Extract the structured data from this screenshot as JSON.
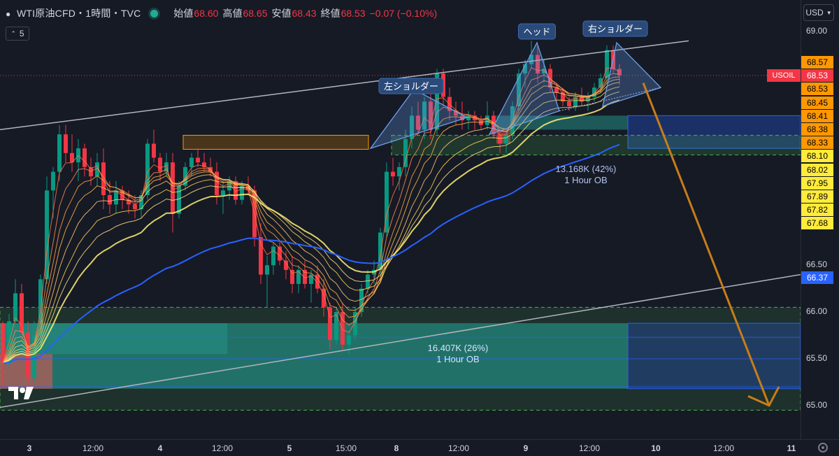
{
  "header": {
    "symbol": "WTI原油CFD・1時間・TVC",
    "open_label": "始値",
    "open": "68.60",
    "high_label": "高値",
    "high": "68.65",
    "low_label": "安値",
    "low": "68.43",
    "close_label": "終値",
    "close": "68.53",
    "change": "−0.07 (−0.10%)"
  },
  "indicator_count": "5",
  "currency": "USD",
  "colors": {
    "up": "#089981",
    "down": "#f23645",
    "background": "#161a25",
    "blue": "#2962ff",
    "orange": "#ff9800"
  },
  "chart_data": {
    "type": "candlestick",
    "ylim": [
      64.95,
      69.05
    ],
    "price_ticks": [
      "69.00",
      "66.50",
      "66.00",
      "65.50",
      "65.00"
    ],
    "time_ticks": [
      "3",
      "12:00",
      "4",
      "12:00",
      "5",
      "15:00",
      "8",
      "12:00",
      "9",
      "12:00",
      "10",
      "12:00",
      "11"
    ],
    "candles": [
      [
        65.88,
        65.9,
        65.2,
        65.45
      ],
      [
        65.45,
        65.98,
        65.4,
        65.9
      ],
      [
        65.9,
        66.35,
        65.85,
        66.2
      ],
      [
        66.2,
        66.3,
        65.7,
        65.78
      ],
      [
        65.78,
        65.9,
        65.2,
        65.3
      ],
      [
        65.3,
        65.9,
        65.25,
        65.75
      ],
      [
        65.75,
        66.4,
        65.6,
        66.35
      ],
      [
        66.35,
        67.45,
        66.3,
        67.3
      ],
      [
        67.3,
        67.55,
        67.0,
        67.5
      ],
      [
        67.5,
        68.0,
        67.4,
        67.9
      ],
      [
        67.9,
        68.0,
        67.6,
        67.7
      ],
      [
        67.7,
        67.9,
        67.5,
        67.6
      ],
      [
        67.6,
        67.85,
        67.4,
        67.75
      ],
      [
        67.75,
        67.8,
        67.45,
        67.55
      ],
      [
        67.55,
        67.65,
        67.35,
        67.45
      ],
      [
        67.45,
        67.7,
        67.35,
        67.6
      ],
      [
        67.6,
        67.75,
        67.1,
        67.25
      ],
      [
        67.25,
        67.4,
        67.05,
        67.15
      ],
      [
        67.15,
        67.4,
        67.05,
        67.3
      ],
      [
        67.3,
        67.35,
        67.1,
        67.2
      ],
      [
        67.2,
        67.3,
        67.05,
        67.15
      ],
      [
        67.15,
        67.25,
        67.0,
        67.1
      ],
      [
        67.1,
        67.3,
        67.0,
        67.25
      ],
      [
        67.25,
        67.85,
        67.2,
        67.8
      ],
      [
        67.8,
        67.95,
        67.6,
        67.65
      ],
      [
        67.65,
        67.7,
        67.4,
        67.5
      ],
      [
        67.5,
        67.7,
        67.45,
        67.6
      ],
      [
        67.6,
        67.7,
        66.85,
        67.05
      ],
      [
        67.05,
        67.4,
        67.0,
        67.35
      ],
      [
        67.35,
        67.6,
        67.3,
        67.55
      ],
      [
        67.55,
        67.7,
        67.45,
        67.65
      ],
      [
        67.65,
        67.75,
        67.55,
        67.6
      ],
      [
        67.6,
        67.7,
        67.5,
        67.55
      ],
      [
        67.55,
        67.65,
        67.45,
        67.5
      ],
      [
        67.5,
        67.6,
        67.15,
        67.25
      ],
      [
        67.25,
        67.4,
        67.05,
        67.3
      ],
      [
        67.3,
        67.45,
        67.2,
        67.4
      ],
      [
        67.4,
        67.45,
        67.15,
        67.2
      ],
      [
        67.2,
        67.4,
        67.15,
        67.35
      ],
      [
        67.35,
        67.45,
        67.25,
        67.3
      ],
      [
        67.3,
        67.35,
        66.7,
        66.8
      ],
      [
        66.8,
        66.95,
        66.3,
        66.4
      ],
      [
        66.4,
        66.6,
        66.05,
        66.5
      ],
      [
        66.5,
        66.75,
        66.4,
        66.7
      ],
      [
        66.7,
        66.75,
        66.5,
        66.55
      ],
      [
        66.55,
        66.65,
        66.35,
        66.45
      ],
      [
        66.45,
        66.6,
        66.2,
        66.3
      ],
      [
        66.3,
        66.5,
        66.2,
        66.45
      ],
      [
        66.45,
        66.55,
        66.25,
        66.3
      ],
      [
        66.3,
        66.45,
        66.1,
        66.4
      ],
      [
        66.4,
        66.5,
        66.2,
        66.25
      ],
      [
        66.25,
        66.35,
        65.95,
        66.05
      ],
      [
        66.05,
        66.1,
        65.6,
        65.7
      ],
      [
        65.7,
        66.05,
        65.65,
        66.0
      ],
      [
        66.0,
        66.1,
        65.6,
        65.65
      ],
      [
        65.65,
        65.8,
        65.55,
        65.75
      ],
      [
        65.75,
        66.05,
        65.7,
        66.0
      ],
      [
        66.0,
        66.3,
        65.95,
        66.25
      ],
      [
        66.25,
        66.45,
        66.2,
        66.4
      ],
      [
        66.4,
        66.55,
        66.3,
        66.45
      ],
      [
        66.45,
        66.9,
        66.4,
        66.85
      ],
      [
        66.85,
        67.6,
        66.8,
        67.5
      ],
      [
        67.5,
        67.65,
        67.35,
        67.45
      ],
      [
        67.45,
        67.6,
        67.3,
        67.55
      ],
      [
        67.55,
        67.95,
        67.45,
        67.85
      ],
      [
        67.85,
        68.2,
        67.75,
        68.1
      ],
      [
        68.1,
        68.25,
        67.9,
        67.95
      ],
      [
        67.95,
        68.3,
        67.85,
        68.25
      ],
      [
        68.25,
        68.35,
        67.85,
        67.95
      ],
      [
        67.95,
        68.6,
        67.9,
        68.55
      ],
      [
        68.55,
        68.6,
        68.2,
        68.3
      ],
      [
        68.3,
        68.4,
        68.05,
        68.15
      ],
      [
        68.15,
        68.25,
        68.0,
        68.1
      ],
      [
        68.1,
        68.25,
        67.95,
        68.05
      ],
      [
        68.05,
        68.15,
        67.95,
        68.1
      ],
      [
        68.1,
        68.15,
        67.95,
        68.05
      ],
      [
        68.05,
        68.1,
        67.95,
        68.0
      ],
      [
        68.0,
        68.25,
        67.95,
        68.1
      ],
      [
        68.1,
        68.15,
        67.85,
        67.9
      ],
      [
        67.9,
        67.95,
        67.7,
        67.8
      ],
      [
        67.8,
        67.95,
        67.7,
        67.9
      ],
      [
        67.9,
        68.25,
        67.85,
        68.2
      ],
      [
        68.2,
        68.6,
        68.15,
        68.55
      ],
      [
        68.55,
        68.7,
        68.4,
        68.65
      ],
      [
        68.65,
        68.9,
        68.6,
        68.75
      ],
      [
        68.75,
        68.85,
        68.45,
        68.55
      ],
      [
        68.55,
        68.7,
        68.45,
        68.6
      ],
      [
        68.6,
        68.65,
        68.35,
        68.4
      ],
      [
        68.4,
        68.45,
        68.25,
        68.35
      ],
      [
        68.35,
        68.4,
        68.2,
        68.25
      ],
      [
        68.25,
        68.3,
        68.15,
        68.2
      ],
      [
        68.2,
        68.35,
        68.15,
        68.3
      ],
      [
        68.3,
        68.4,
        68.2,
        68.25
      ],
      [
        68.25,
        68.35,
        68.15,
        68.3
      ],
      [
        68.3,
        68.45,
        68.25,
        68.4
      ],
      [
        68.4,
        68.55,
        68.35,
        68.5
      ],
      [
        68.5,
        68.85,
        68.45,
        68.8
      ],
      [
        68.8,
        68.85,
        68.55,
        68.6
      ],
      [
        68.6,
        68.65,
        68.43,
        68.53
      ]
    ],
    "price_labels": [
      {
        "text": "68.57",
        "kind": "orange"
      },
      {
        "text": "68.53",
        "kind": "red",
        "tag": "USOIL"
      },
      {
        "text": "68.53",
        "kind": "orange"
      },
      {
        "text": "68.45",
        "kind": "orange"
      },
      {
        "text": "68.41",
        "kind": "orange"
      },
      {
        "text": "68.38",
        "kind": "orange"
      },
      {
        "text": "68.33",
        "kind": "orange"
      },
      {
        "text": "68.10",
        "kind": "yellow"
      },
      {
        "text": "68.02",
        "kind": "yellow"
      },
      {
        "text": "67.95",
        "kind": "yellow"
      },
      {
        "text": "67.89",
        "kind": "yellow"
      },
      {
        "text": "67.82",
        "kind": "yellow"
      },
      {
        "text": "67.68",
        "kind": "yellow"
      },
      {
        "text": "66.37",
        "kind": "blue"
      }
    ],
    "annotations": [
      {
        "text": "左ショルダー",
        "kind": "pattern"
      },
      {
        "text": "ヘッド",
        "kind": "pattern"
      },
      {
        "text": "右ショルダー",
        "kind": "pattern"
      },
      {
        "text": "13.168K (42%)",
        "kind": "ob"
      },
      {
        "text": "1 Hour OB",
        "kind": "ob"
      },
      {
        "text": "16.407K (26%)",
        "kind": "ob"
      },
      {
        "text": "1 Hour OB",
        "kind": "ob"
      }
    ],
    "grid": false
  }
}
